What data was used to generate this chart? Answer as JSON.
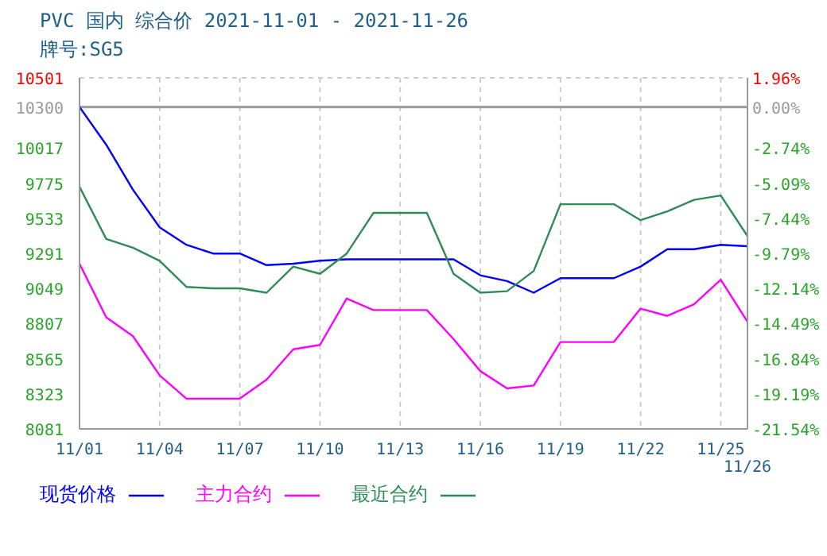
{
  "chart_data": {
    "type": "line",
    "title": "PVC 国内 综合价 2021-11-01 - 2021-11-26",
    "subtitle": "牌号:SG5",
    "categories": [
      "11/01",
      null,
      null,
      "11/04",
      null,
      null,
      "11/07",
      null,
      null,
      "11/10",
      null,
      null,
      "11/13",
      null,
      null,
      "11/16",
      null,
      null,
      "11/19",
      null,
      null,
      "11/22",
      null,
      null,
      "11/25",
      "11/26"
    ],
    "series": [
      {
        "name": "现货价格",
        "color": "#0000ff",
        "values": [
          10300,
          10040,
          9730,
          9470,
          9350,
          9290,
          9290,
          9210,
          9220,
          9240,
          9250,
          9250,
          9250,
          9250,
          9250,
          9140,
          9100,
          9020,
          9120,
          9120,
          9120,
          9200,
          9320,
          9320,
          9350,
          9340
        ]
      },
      {
        "name": "主力合约",
        "color": "#ff00ff",
        "values": [
          9220,
          8850,
          8720,
          8450,
          8290,
          8290,
          8290,
          8420,
          8630,
          8660,
          8980,
          8900,
          8900,
          8900,
          8700,
          8480,
          8360,
          8380,
          8680,
          8680,
          8680,
          8910,
          8860,
          8940,
          9110,
          8820
        ]
      },
      {
        "name": "最近合约",
        "color": "#2e8b57",
        "values": [
          9750,
          9390,
          9330,
          9240,
          9060,
          9050,
          9050,
          9020,
          9200,
          9150,
          9290,
          9570,
          9570,
          9570,
          9150,
          9020,
          9030,
          9170,
          9630,
          9630,
          9630,
          9520,
          9580,
          9660,
          9690,
          9410
        ]
      }
    ],
    "ylim": [
      8081,
      10501
    ],
    "yticks": [
      8081,
      8323,
      8565,
      8807,
      9049,
      9291,
      9533,
      9775,
      10017,
      10300,
      10501
    ],
    "y2lim": [
      -21.54,
      1.96
    ],
    "y2ticks": [
      {
        "value": -21.54,
        "label": "-21.54%"
      },
      {
        "value": -19.19,
        "label": "-19.19%"
      },
      {
        "value": -16.84,
        "label": "-16.84%"
      },
      {
        "value": -14.49,
        "label": "-14.49%"
      },
      {
        "value": -12.14,
        "label": "-12.14%"
      },
      {
        "value": -9.79,
        "label": "-9.79%"
      },
      {
        "value": -7.44,
        "label": "-7.44%"
      },
      {
        "value": -5.09,
        "label": "-5.09%"
      },
      {
        "value": -2.74,
        "label": "-2.74%"
      },
      {
        "value": 0,
        "label": "0.00%"
      },
      {
        "value": 1.96,
        "label": "1.96%"
      }
    ],
    "ref_lines": [
      {
        "axis": "y",
        "value": 10300,
        "color": "#999999"
      }
    ],
    "grid": true,
    "legend": "bottom",
    "marker": "none",
    "line_style": "solid"
  }
}
